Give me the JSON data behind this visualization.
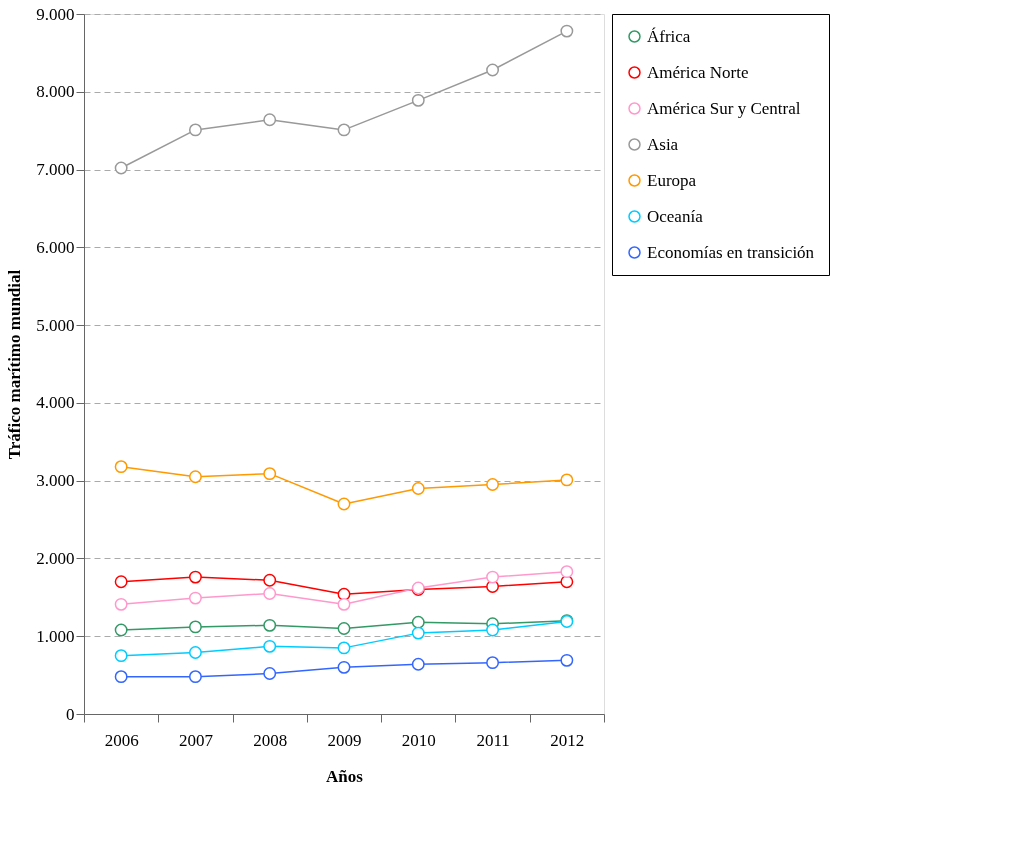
{
  "chart_data": {
    "type": "line",
    "xlabel": "Años",
    "ylabel": "Tráfico marítimo mundial",
    "categories": [
      "2006",
      "2007",
      "2008",
      "2009",
      "2010",
      "2011",
      "2012"
    ],
    "series": [
      {
        "name": "África",
        "color": "#339966",
        "values": [
          1080,
          1120,
          1140,
          1100,
          1180,
          1160,
          1200
        ]
      },
      {
        "name": "América Norte",
        "color": "#ff0000",
        "values": [
          1700,
          1760,
          1720,
          1540,
          1600,
          1640,
          1700
        ]
      },
      {
        "name": "América Sur y Central",
        "color": "#ff99cc",
        "values": [
          1410,
          1490,
          1550,
          1410,
          1620,
          1760,
          1830
        ]
      },
      {
        "name": "Asia",
        "color": "#999999",
        "values": [
          7020,
          7510,
          7640,
          7510,
          7890,
          8280,
          8780
        ]
      },
      {
        "name": "Europa",
        "color": "#ff9900",
        "values": [
          3180,
          3050,
          3090,
          2700,
          2900,
          2950,
          3010
        ]
      },
      {
        "name": "Oceanía",
        "color": "#00ccff",
        "values": [
          750,
          790,
          870,
          850,
          1040,
          1080,
          1190
        ]
      },
      {
        "name": "Economías en transición",
        "color": "#3366ff",
        "values": [
          480,
          480,
          520,
          600,
          640,
          660,
          690
        ]
      }
    ],
    "ylim": [
      0,
      9000
    ],
    "yticks": [
      0,
      {
        "value": 1000,
        "label": "1.000"
      },
      {
        "value": 2000,
        "label": "2.000"
      },
      {
        "value": 3000,
        "label": "3.000"
      },
      {
        "value": 4000,
        "label": "4.000"
      },
      {
        "value": 5000,
        "label": "5.000"
      },
      {
        "value": 6000,
        "label": "6.000"
      },
      {
        "value": 7000,
        "label": "7.000"
      },
      {
        "value": 8000,
        "label": "8.000"
      },
      {
        "value": 9000,
        "label": "9.000"
      }
    ],
    "grid": "y",
    "legend": "right",
    "marker": "circle",
    "line_style": "solid"
  }
}
